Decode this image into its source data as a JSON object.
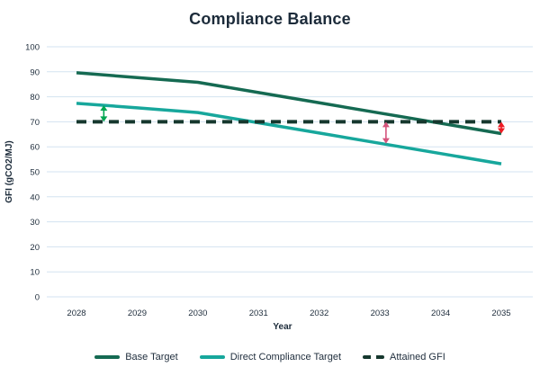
{
  "page": {
    "background": "#ffffff",
    "text_color": "#1c2b3a",
    "gridline_color": "#d3e3f0"
  },
  "chart_data": {
    "type": "line",
    "title": "Compliance Balance",
    "xlabel": "Year",
    "ylabel": "GFI (gCO2/MJ)",
    "x": [
      2028,
      2029,
      2030,
      2031,
      2032,
      2033,
      2034,
      2035
    ],
    "ylim": [
      0,
      100
    ],
    "ytick_step": 10,
    "grid": "horizontal",
    "legend_position": "bottom",
    "series": [
      {
        "name": "Base Target",
        "style": "solid",
        "color": "#156a52",
        "values": [
          89.6,
          87.7,
          85.8,
          81.7,
          77.6,
          73.5,
          69.4,
          65.3
        ]
      },
      {
        "name": "Direct Compliance Target",
        "style": "solid",
        "color": "#17a79c",
        "values": [
          77.4,
          75.6,
          73.7,
          69.6,
          65.5,
          61.4,
          57.3,
          53.2
        ]
      },
      {
        "name": "Attained GFI",
        "style": "dashed",
        "color": "#16382e",
        "values": [
          70,
          70,
          70,
          70,
          70,
          70,
          70,
          70
        ]
      }
    ],
    "annotations": [
      {
        "name": "green-double-arrow-2028",
        "type": "double-arrow",
        "color": "#00a651",
        "x": 2028.45,
        "y1": 76.6,
        "y2": 70
      },
      {
        "name": "pink-double-arrow-2033",
        "type": "double-arrow",
        "color": "#d5547c",
        "x": 2033.1,
        "y1": 70,
        "y2": 61.3
      },
      {
        "name": "red-double-arrow-2035",
        "type": "double-arrow",
        "color": "#ee1c24",
        "x": 2035,
        "y1": 70,
        "y2": 65.3
      }
    ]
  }
}
